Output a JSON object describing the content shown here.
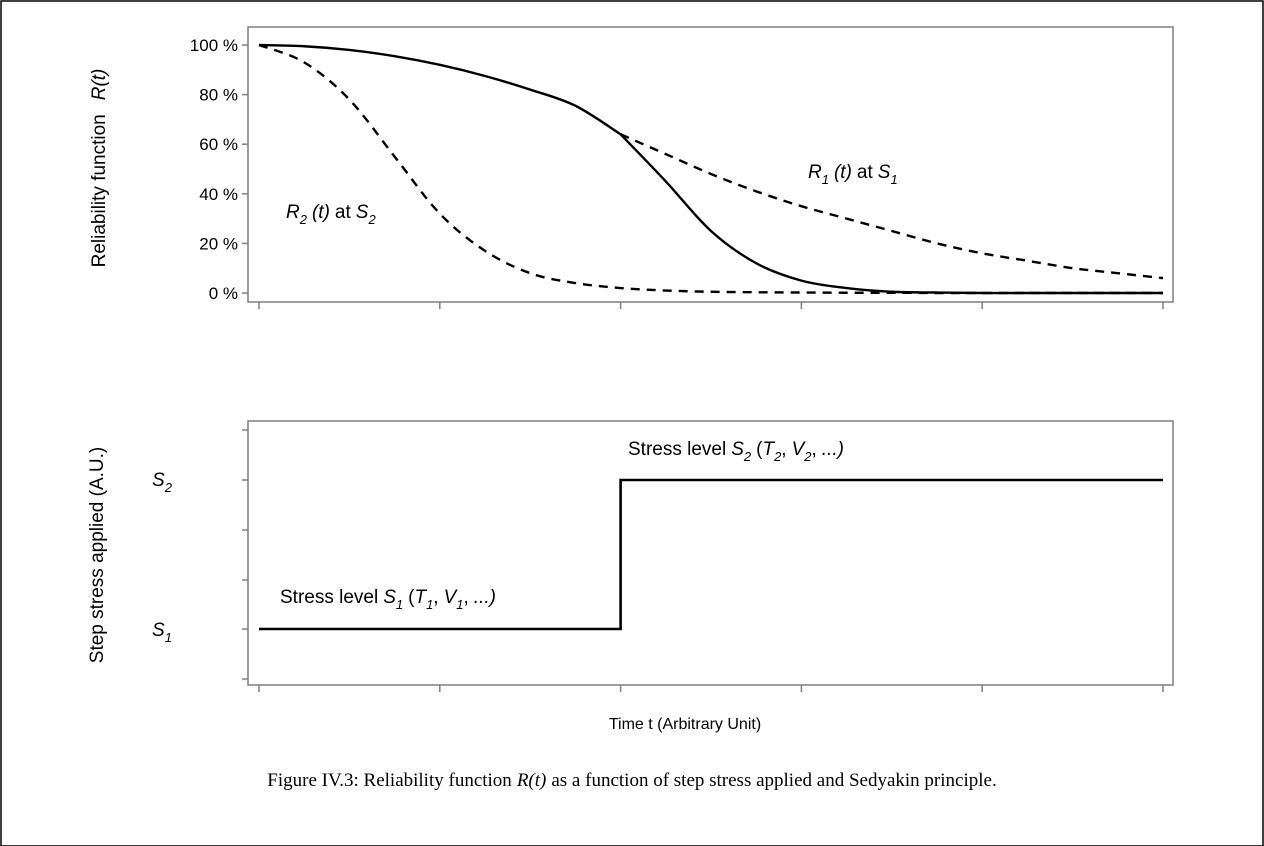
{
  "chart_data": [
    {
      "type": "line",
      "ylabel": "Reliability function",
      "ylabel_symbol": "R(t)",
      "yticks": [
        "100 %",
        "80 %",
        "60 %",
        "40 %",
        "20 %",
        "0 %"
      ],
      "ylim": [
        0,
        100
      ],
      "xlim": [
        0,
        5
      ],
      "xticks_count": 6,
      "step_time": 2,
      "series": [
        {
          "name": "R1 (t) at S1",
          "style": "dashed",
          "x": [
            0,
            0.25,
            0.5,
            0.75,
            1,
            1.25,
            1.5,
            1.75,
            2,
            2.25,
            2.5,
            2.75,
            3,
            3.25,
            3.5,
            3.75,
            4,
            4.25,
            4.5,
            4.75,
            5
          ],
          "values": [
            100,
            99.5,
            98,
            95.5,
            92,
            87.5,
            82,
            75.5,
            64,
            56,
            48,
            41,
            35,
            30,
            25,
            20,
            16,
            13,
            10,
            8,
            6
          ]
        },
        {
          "name": "R2 (t) at S2",
          "style": "dashed",
          "x": [
            0,
            0.25,
            0.5,
            0.75,
            1,
            1.25,
            1.5,
            1.75,
            2,
            2.25,
            2.5,
            2.75,
            3,
            3.25,
            3.5,
            3.75,
            4,
            4.25,
            4.5,
            4.75,
            5
          ],
          "values": [
            100,
            93,
            78,
            55,
            32,
            17,
            8,
            4,
            2,
            1,
            0.5,
            0.3,
            0.2,
            0.1,
            0.1,
            0,
            0,
            0,
            0,
            0,
            0
          ]
        },
        {
          "name": "",
          "style": "solid",
          "x": [
            0,
            0.25,
            0.5,
            0.75,
            1,
            1.25,
            1.5,
            1.75,
            2,
            2.25,
            2.5,
            2.75,
            3,
            3.25,
            3.5,
            3.75,
            4,
            4.25,
            4.5,
            4.75,
            5
          ],
          "values": [
            100,
            99.5,
            98,
            95.5,
            92,
            87.5,
            82,
            75.5,
            64,
            45,
            25,
            12,
            5,
            2,
            0.5,
            0.2,
            0,
            0,
            0,
            0,
            0
          ]
        }
      ],
      "annotations": [
        {
          "main": "R",
          "sub": "1",
          "rest": "(t)",
          "tail": "at",
          "s": "S",
          "ssub": "1"
        },
        {
          "main": "R",
          "sub": "2",
          "rest": "(t)",
          "tail": "at",
          "s": "S",
          "ssub": "2"
        }
      ]
    },
    {
      "type": "line",
      "ylabel": "Step stress applied (A.U.)",
      "xlabel": "Time t (Arbitrary Unit)",
      "ytick_labels": [
        {
          "main": "S",
          "sub": "2"
        },
        {
          "main": "S",
          "sub": "1"
        }
      ],
      "xlim": [
        0,
        5
      ],
      "series": [
        {
          "name": "",
          "style": "solid",
          "x": [
            0,
            2,
            2,
            5
          ],
          "values": [
            1,
            1,
            2,
            2
          ]
        }
      ],
      "annotations": [
        {
          "prefix": "Stress level",
          "s": "S",
          "ssub": "1",
          "t": "T",
          "tsub": "1",
          "v": "V",
          "vsub": "1",
          "ell": "...)"
        },
        {
          "prefix": "Stress level",
          "s": "S",
          "ssub": "2",
          "t": "T",
          "tsub": "2",
          "v": "V",
          "vsub": "2",
          "ell": "...)"
        }
      ]
    }
  ],
  "caption": {
    "prefix": "Figure IV.3: Reliability function",
    "symbol": "R(t)",
    "suffix": "as a function of step stress applied and Sedyakin principle."
  }
}
